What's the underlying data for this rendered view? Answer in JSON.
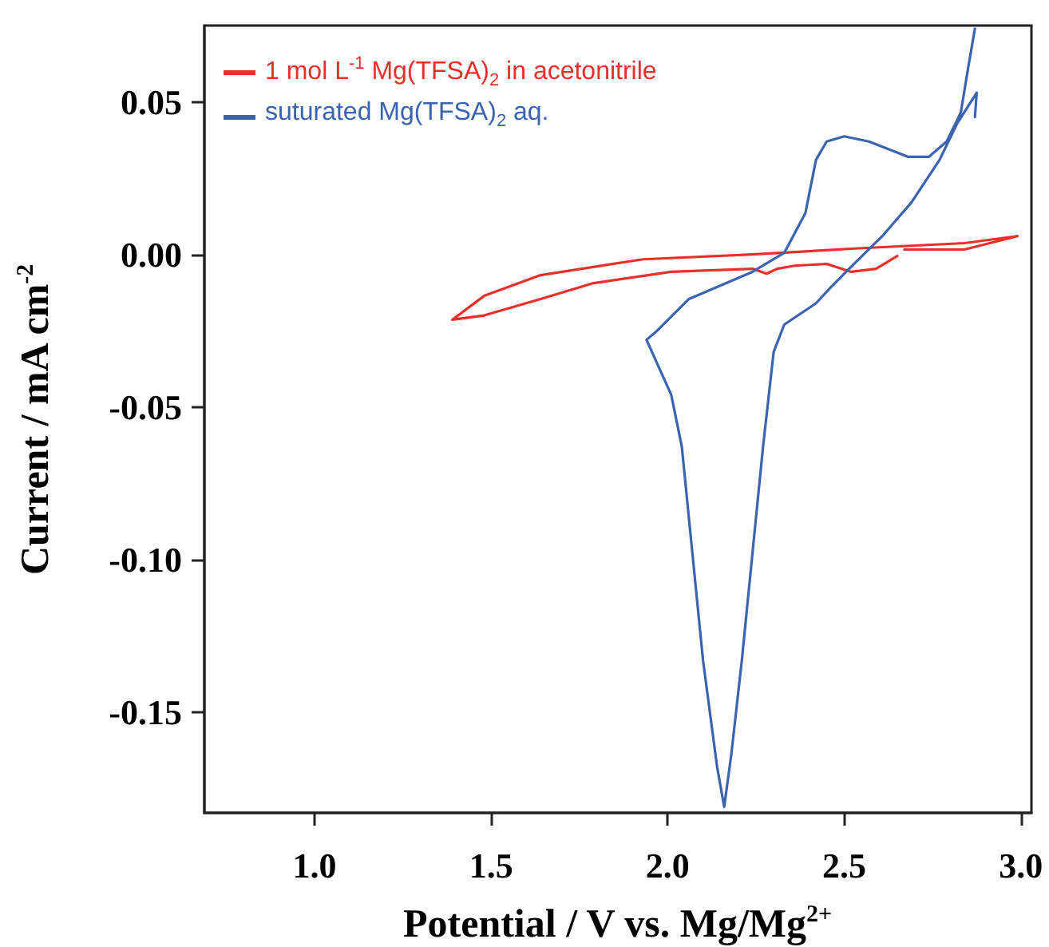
{
  "chart_data": {
    "type": "line",
    "xlabel": "Potential / V vs. Mg/Mg$^{2+}$",
    "ylabel": "Current / mA cm$^{-2}$",
    "xlim": [
      0.688,
      3.03
    ],
    "ylim": [
      -0.183,
      0.075
    ],
    "xticks": [
      {
        "value": 1,
        "label": "1.0"
      },
      {
        "value": 1.5,
        "label": "1.5"
      },
      {
        "value": 2,
        "label": "2.0"
      },
      {
        "value": 2.5,
        "label": "2.5"
      },
      {
        "value": 3,
        "label": "3.0"
      }
    ],
    "yticks": [
      {
        "value": -0.15,
        "label": "-0.15"
      },
      {
        "value": -0.1,
        "label": "-0.10"
      },
      {
        "value": -0.05,
        "label": "-0.05"
      },
      {
        "value": 0,
        "label": "0.00"
      },
      {
        "value": 0.05,
        "label": "0.05"
      }
    ],
    "grid": false,
    "legend": "top left",
    "marker": "none",
    "line_style": "solid",
    "series": [
      {
        "name": "1 mol L$^{-1}$ Mg(TFSA)$_{2}$ in acetonitrile",
        "color": "#e8302a",
        "x": [
          2.67,
          2.84,
          2.99,
          2.84,
          2.54,
          2.24,
          1.93,
          1.64,
          1.48,
          1.39,
          1.48,
          1.64,
          1.79,
          2.01,
          2.24,
          2.28,
          2.31,
          2.36,
          2.45,
          2.52,
          2.59,
          2.65
        ],
        "values": [
          0.0016,
          0.0016,
          0.006,
          0.0037,
          0.002,
          0,
          -0.0016,
          -0.0068,
          -0.0136,
          -0.0214,
          -0.02,
          -0.0146,
          -0.0094,
          -0.0057,
          -0.0047,
          -0.0063,
          -0.0047,
          -0.0037,
          -0.0031,
          -0.0057,
          -0.0047,
          -0.0005
        ]
      },
      {
        "name": "suturated Mg(TFSA)$_{2}$ aq.",
        "color": "#3a63b0",
        "x": [
          2.87,
          2.875,
          2.82,
          2.77,
          2.69,
          2.61,
          2.52,
          2.46,
          2.42,
          2.33,
          2.3,
          2.27,
          2.24,
          2.21,
          2.18,
          2.16,
          2.14,
          2.1,
          2.07,
          2.04,
          2.01,
          1.94,
          1.97,
          2.06,
          2.24,
          2.33,
          2.39,
          2.42,
          2.45,
          2.5,
          2.57,
          2.68,
          2.74,
          2.79,
          2.83,
          2.85,
          2.87
        ],
        "values": [
          0.045,
          0.053,
          0.043,
          0.031,
          0.017,
          0.0063,
          -0.004,
          -0.011,
          -0.016,
          -0.023,
          -0.032,
          -0.063,
          -0.098,
          -0.133,
          -0.164,
          -0.181,
          -0.168,
          -0.133,
          -0.098,
          -0.063,
          -0.046,
          -0.028,
          -0.025,
          -0.0146,
          -0.0057,
          0.0005,
          0.0136,
          0.031,
          0.037,
          0.0387,
          0.037,
          0.032,
          0.032,
          0.037,
          0.0465,
          0.0606,
          0.074
        ]
      }
    ]
  }
}
